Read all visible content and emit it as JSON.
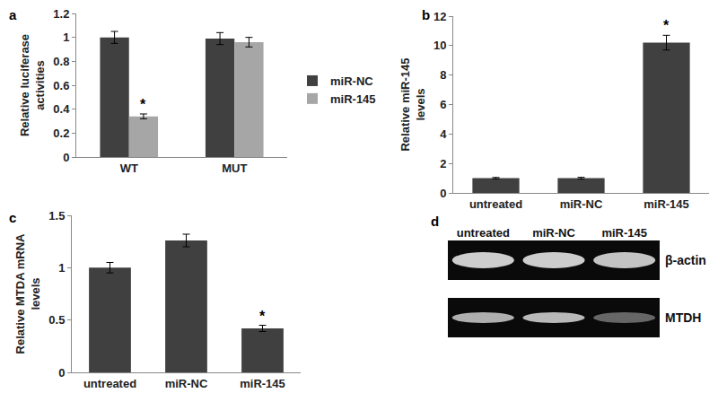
{
  "chart_data": [
    {
      "panel": "a",
      "type": "bar",
      "y_label": "Relative luciferase activities",
      "categories": [
        "WT",
        "MUT"
      ],
      "series": [
        {
          "name": "miR-NC",
          "color": "#404040",
          "values": [
            1.0,
            0.99
          ],
          "errors": [
            0.05,
            0.05
          ]
        },
        {
          "name": "miR-145",
          "color": "#a6a6a6",
          "values": [
            0.34,
            0.96
          ],
          "errors": [
            0.02,
            0.04
          ]
        }
      ],
      "ylim": [
        0,
        1.2
      ],
      "yticks": [
        0,
        0.2,
        0.4,
        0.6,
        0.8,
        1,
        1.2
      ],
      "grid": false,
      "legend": "right",
      "annotations": [
        {
          "text": "*",
          "category": "WT",
          "series": "miR-145"
        }
      ]
    },
    {
      "panel": "b",
      "type": "bar",
      "y_label": "Relative miR-145 levels",
      "categories": [
        "untreated",
        "miR-NC",
        "miR-145"
      ],
      "series": [
        {
          "name": "miR-145 levels",
          "color": "#404040",
          "values": [
            1.0,
            1.0,
            10.2
          ],
          "errors": [
            0.05,
            0.06,
            0.5
          ]
        }
      ],
      "ylim": [
        0,
        12
      ],
      "yticks": [
        0,
        2,
        4,
        6,
        8,
        10,
        12
      ],
      "grid": false,
      "annotations": [
        {
          "text": "*",
          "category": "miR-145"
        }
      ]
    },
    {
      "panel": "c",
      "type": "bar",
      "y_label": "Relative MTDA mRNA levels",
      "categories": [
        "untreated",
        "miR-NC",
        "miR-145"
      ],
      "series": [
        {
          "name": "MTDA mRNA levels",
          "color": "#404040",
          "values": [
            1.0,
            1.26,
            0.42
          ],
          "errors": [
            0.05,
            0.06,
            0.03
          ]
        }
      ],
      "ylim": [
        0,
        1.5
      ],
      "yticks": [
        0,
        0.5,
        1,
        1.5
      ],
      "grid": false,
      "annotations": [
        {
          "text": "*",
          "category": "miR-145"
        }
      ]
    }
  ],
  "blot": {
    "panel": "d",
    "lanes": [
      "untreated",
      "miR-NC",
      "miR-145"
    ],
    "bands": [
      {
        "name": "β-actin",
        "intensity": [
          0.95,
          0.95,
          0.9
        ]
      },
      {
        "name": "MTDH",
        "intensity": [
          0.8,
          0.85,
          0.45
        ]
      }
    ]
  }
}
